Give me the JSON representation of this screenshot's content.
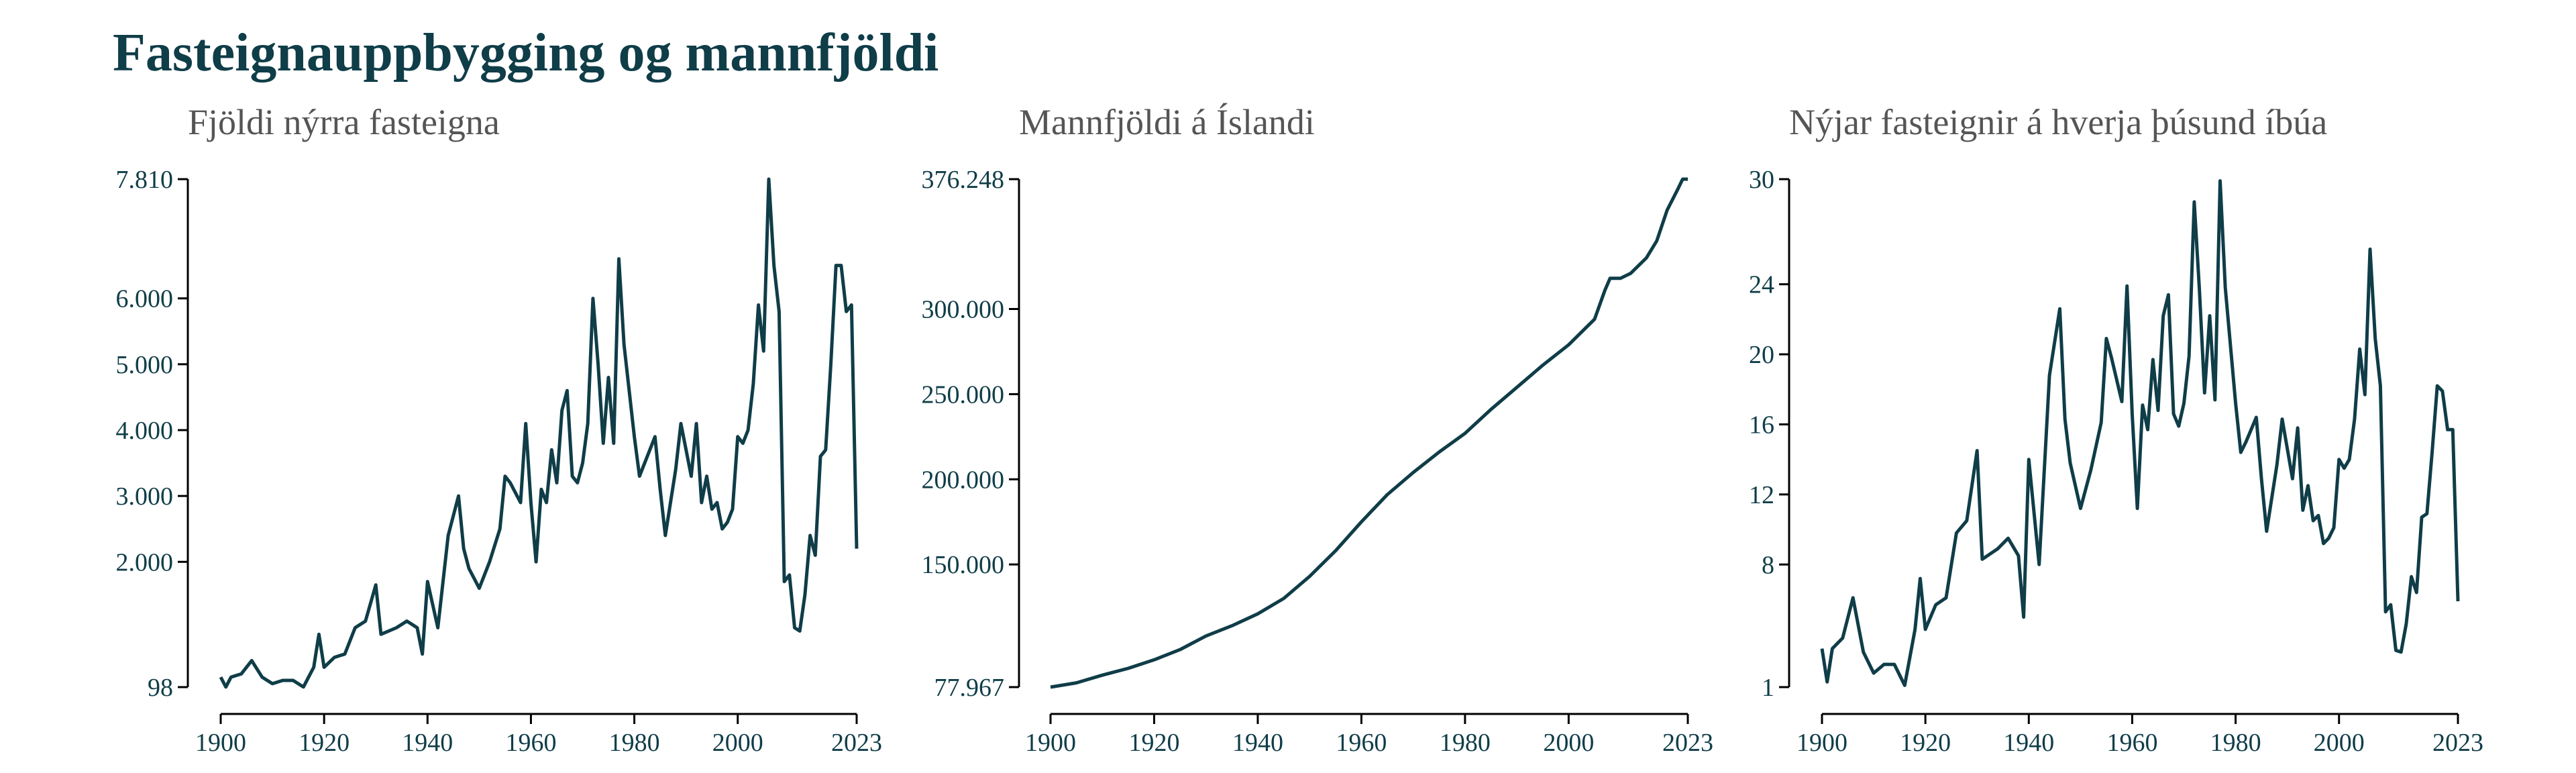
{
  "title": "Fasteignauppbygging og mannfjöldi",
  "chart_data": [
    {
      "type": "line",
      "title": "Fjöldi nýrra fasteigna",
      "color": "#0f3d48",
      "x": [
        1900,
        1901,
        1902,
        1904,
        1906,
        1908,
        1910,
        1912,
        1914,
        1916,
        1918,
        1919,
        1920,
        1922,
        1924,
        1926,
        1928,
        1930,
        1931,
        1934,
        1936,
        1938,
        1939,
        1940,
        1942,
        1944,
        1946,
        1947,
        1948,
        1950,
        1952,
        1954,
        1955,
        1956,
        1958,
        1959,
        1960,
        1961,
        1962,
        1963,
        1964,
        1965,
        1966,
        1967,
        1968,
        1969,
        1970,
        1971,
        1972,
        1973,
        1974,
        1975,
        1976,
        1977,
        1978,
        1980,
        1981,
        1982,
        1984,
        1985,
        1986,
        1988,
        1989,
        1990,
        1991,
        1992,
        1993,
        1994,
        1995,
        1996,
        1997,
        1998,
        1999,
        2000,
        2001,
        2002,
        2003,
        2004,
        2005,
        2006,
        2007,
        2008,
        2009,
        2010,
        2011,
        2012,
        2013,
        2014,
        2015,
        2016,
        2017,
        2018,
        2019,
        2020,
        2021,
        2022,
        2023
      ],
      "values": [
        250,
        100,
        250,
        300,
        500,
        250,
        150,
        200,
        200,
        100,
        400,
        900,
        400,
        550,
        600,
        1000,
        1100,
        1650,
        900,
        1000,
        1100,
        1000,
        600,
        1700,
        1000,
        2400,
        3000,
        2200,
        1900,
        1600,
        2000,
        2500,
        3300,
        3200,
        2900,
        4100,
        2900,
        2000,
        3100,
        2900,
        3700,
        3200,
        4300,
        4600,
        3300,
        3200,
        3500,
        4100,
        6000,
        5000,
        3800,
        4800,
        3800,
        6600,
        5300,
        3900,
        3300,
        3500,
        3900,
        3100,
        2400,
        3400,
        4100,
        3700,
        3300,
        4100,
        2900,
        3300,
        2800,
        2900,
        2500,
        2600,
        2800,
        3900,
        3800,
        4000,
        4700,
        5900,
        5200,
        7810,
        6500,
        5800,
        1700,
        1800,
        1000,
        950,
        1500,
        2400,
        2100,
        3600,
        3700,
        5000,
        6500,
        6500,
        5800,
        5900,
        2200
      ],
      "xlim": [
        1900,
        2023
      ],
      "xticks": [
        1900,
        1920,
        1940,
        1960,
        1980,
        2000,
        2023
      ],
      "ylim": [
        98,
        7810
      ],
      "yticks": [
        98,
        {
          "value": 2000,
          "label": "2.000"
        },
        {
          "value": 3000,
          "label": "3.000"
        },
        {
          "value": 4000,
          "label": "4.000"
        },
        {
          "value": 5000,
          "label": "5.000"
        },
        {
          "value": 6000,
          "label": "6.000"
        },
        {
          "value": 7810,
          "label": "7.810"
        }
      ]
    },
    {
      "type": "line",
      "title": "Mannfjöldi á Íslandi",
      "color": "#0f3d48",
      "x": [
        1900,
        1905,
        1910,
        1915,
        1920,
        1925,
        1930,
        1935,
        1940,
        1945,
        1950,
        1955,
        1960,
        1965,
        1970,
        1975,
        1980,
        1985,
        1990,
        1995,
        2000,
        2005,
        2007,
        2008,
        2010,
        2012,
        2015,
        2017,
        2019,
        2021,
        2022,
        2023
      ],
      "values": [
        77967,
        80500,
        85000,
        89000,
        94000,
        100000,
        108000,
        114000,
        121000,
        130000,
        143000,
        158000,
        175000,
        191000,
        204000,
        216000,
        227000,
        241000,
        254000,
        267000,
        279000,
        294000,
        311000,
        318000,
        318000,
        321000,
        330000,
        340000,
        358000,
        370000,
        376248,
        376248
      ],
      "xlim": [
        1900,
        2023
      ],
      "xticks": [
        1900,
        1920,
        1940,
        1960,
        1980,
        2000,
        2023
      ],
      "ylim": [
        77967,
        376248
      ],
      "yticks": [
        {
          "value": 77967,
          "label": "77.967"
        },
        {
          "value": 150000,
          "label": "150.000"
        },
        {
          "value": 200000,
          "label": "200.000"
        },
        {
          "value": 250000,
          "label": "250.000"
        },
        {
          "value": 300000,
          "label": "300.000"
        },
        {
          "value": 376248,
          "label": "376.248"
        }
      ]
    },
    {
      "type": "line",
      "title": "Nýjar fasteignir á hverja þúsund íbúa",
      "color": "#0f3d48",
      "x": [
        1900,
        1901,
        1902,
        1904,
        1906,
        1908,
        1910,
        1912,
        1914,
        1916,
        1918,
        1919,
        1920,
        1922,
        1924,
        1926,
        1928,
        1930,
        1931,
        1934,
        1936,
        1938,
        1939,
        1940,
        1942,
        1944,
        1946,
        1947,
        1948,
        1950,
        1952,
        1954,
        1955,
        1956,
        1958,
        1959,
        1960,
        1961,
        1962,
        1963,
        1964,
        1965,
        1966,
        1967,
        1968,
        1969,
        1970,
        1971,
        1972,
        1973,
        1974,
        1975,
        1976,
        1977,
        1978,
        1980,
        1981,
        1982,
        1984,
        1985,
        1986,
        1988,
        1989,
        1990,
        1991,
        1992,
        1993,
        1994,
        1995,
        1996,
        1997,
        1998,
        1999,
        2000,
        2001,
        2002,
        2003,
        2004,
        2005,
        2006,
        2007,
        2008,
        2009,
        2010,
        2011,
        2012,
        2013,
        2014,
        2015,
        2016,
        2017,
        2018,
        2019,
        2020,
        2021,
        2022,
        2023
      ],
      "values": [
        3.2,
        1.3,
        3.2,
        3.8,
        6.1,
        3.0,
        1.8,
        2.3,
        2.3,
        1.1,
        4.3,
        7.2,
        4.3,
        5.7,
        6.1,
        9.8,
        10.5,
        14.5,
        8.3,
        8.9,
        9.5,
        8.5,
        5.0,
        14.0,
        8.0,
        18.8,
        22.6,
        16.3,
        13.8,
        11.2,
        13.4,
        16.1,
        20.9,
        19.8,
        17.3,
        23.9,
        16.6,
        11.2,
        17.1,
        15.7,
        19.7,
        16.8,
        22.2,
        23.4,
        16.6,
        15.9,
        17.2,
        19.9,
        28.7,
        23.7,
        17.8,
        22.2,
        17.4,
        29.9,
        23.8,
        17.2,
        14.4,
        15.0,
        16.4,
        12.9,
        9.9,
        13.7,
        16.3,
        14.6,
        12.9,
        15.8,
        11.1,
        12.5,
        10.5,
        10.8,
        9.2,
        9.5,
        10.1,
        14.0,
        13.5,
        14.0,
        16.3,
        20.3,
        17.7,
        26.0,
        20.9,
        18.2,
        5.3,
        5.7,
        3.1,
        3.0,
        4.6,
        7.3,
        6.4,
        10.7,
        10.9,
        14.4,
        18.2,
        17.9,
        15.7,
        15.7,
        5.9
      ],
      "xlim": [
        1900,
        2023
      ],
      "xticks": [
        1900,
        1920,
        1940,
        1960,
        1980,
        2000,
        2023
      ],
      "ylim": [
        1,
        30
      ],
      "yticks": [
        1,
        8,
        12,
        16,
        20,
        24,
        30
      ]
    }
  ]
}
